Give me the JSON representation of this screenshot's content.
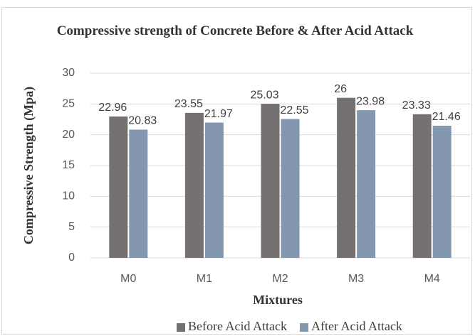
{
  "chart_data": {
    "type": "bar",
    "title": "Compressive strength of Concrete Before & After Acid Attack",
    "x_label": "Mixtures",
    "y_label": "Compressive Strength (Mpa)",
    "categories": [
      "M0",
      "M1",
      "M2",
      "M3",
      "M4"
    ],
    "series": [
      {
        "name": "Before Acid Attack",
        "color": "#767171",
        "values": [
          22.96,
          23.55,
          25.03,
          26,
          23.33
        ]
      },
      {
        "name": "After Acid Attack",
        "color": "#8497b0",
        "values": [
          20.83,
          21.97,
          22.55,
          23.98,
          21.46
        ]
      }
    ],
    "ylim": [
      0,
      30
    ],
    "yticks": [
      0,
      5,
      10,
      15,
      20,
      25,
      30
    ],
    "grid": true,
    "legend": "bottom"
  }
}
